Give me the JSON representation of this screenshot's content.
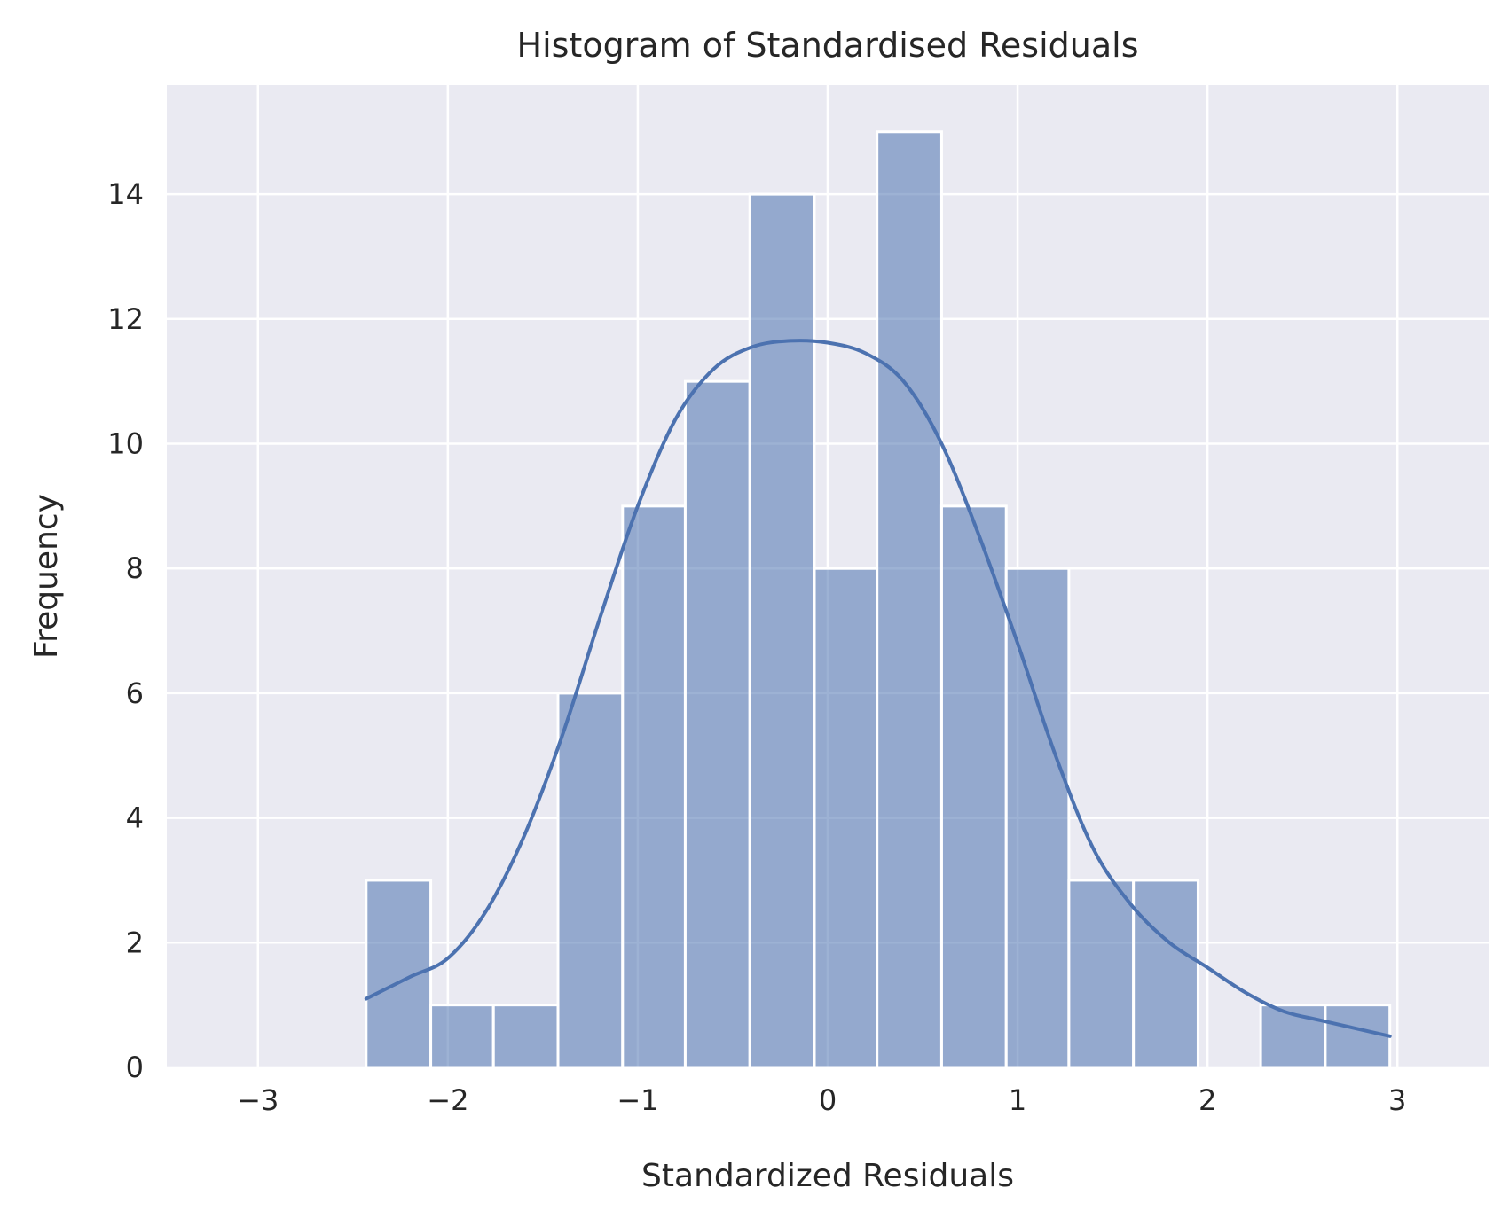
{
  "chart_data": {
    "type": "bar",
    "title": "Histogram of Standardised Residuals",
    "xlabel": "Standardized Residuals",
    "ylabel": "Frequency",
    "xlim": [
      -3.48,
      3.48
    ],
    "ylim": [
      0,
      15.75
    ],
    "x_ticks": [
      -3,
      -2,
      -1,
      0,
      1,
      2,
      3
    ],
    "x_tick_labels": [
      "−3",
      "−2",
      "−1",
      "0",
      "1",
      "2",
      "3"
    ],
    "y_ticks": [
      0,
      2,
      4,
      6,
      8,
      10,
      12,
      14
    ],
    "y_tick_labels": [
      "0",
      "2",
      "4",
      "6",
      "8",
      "10",
      "12",
      "14"
    ],
    "bin_edges": [
      -2.43,
      -2.09,
      -1.76,
      -1.42,
      -1.08,
      -0.75,
      -0.41,
      -0.07,
      0.26,
      0.6,
      0.94,
      1.27,
      1.61,
      1.95,
      2.28,
      2.62,
      2.96
    ],
    "counts": [
      3,
      1,
      1,
      6,
      9,
      11,
      14,
      8,
      15,
      9,
      8,
      3,
      3,
      0,
      1,
      1
    ],
    "kde": {
      "x": [
        -2.43,
        -2.2,
        -2.0,
        -1.8,
        -1.6,
        -1.4,
        -1.2,
        -1.0,
        -0.8,
        -0.6,
        -0.4,
        -0.2,
        0.0,
        0.2,
        0.4,
        0.6,
        0.8,
        1.0,
        1.2,
        1.4,
        1.6,
        1.8,
        2.0,
        2.2,
        2.4,
        2.6,
        2.96
      ],
      "y": [
        1.1,
        1.45,
        1.75,
        2.5,
        3.7,
        5.3,
        7.2,
        9.0,
        10.4,
        11.2,
        11.55,
        11.65,
        11.62,
        11.45,
        11.0,
        10.0,
        8.5,
        6.8,
        5.0,
        3.5,
        2.6,
        2.0,
        1.6,
        1.2,
        0.9,
        0.75,
        0.5
      ]
    },
    "grid": true,
    "legend": "none",
    "colors": {
      "bar_fill": "#4c72b0",
      "line": "#4c72b0",
      "plot_background": "#eaeaf2",
      "grid": "#ffffff",
      "text": "#262626"
    }
  }
}
